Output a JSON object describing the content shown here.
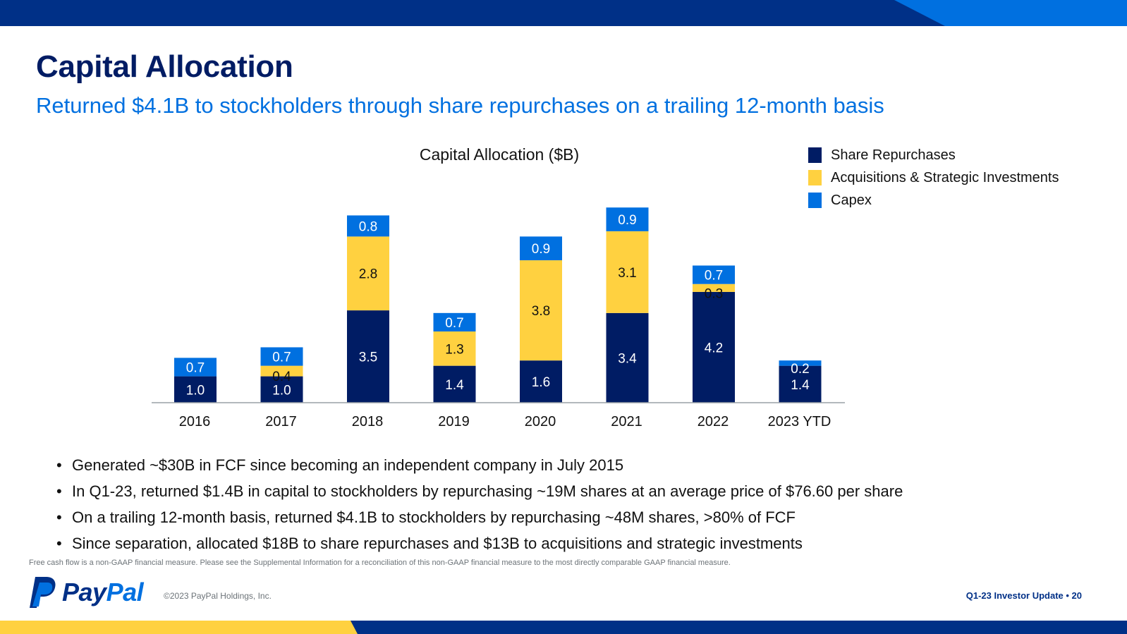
{
  "title": "Capital Allocation",
  "subtitle": "Returned $4.1B to stockholders through share repurchases on a trailing 12-month basis",
  "colors": {
    "navy": "#001c64",
    "dark_blue": "#003087",
    "bright_blue": "#0070e0",
    "light_blue": "#1a8cff",
    "yellow": "#ffd140",
    "axis": "#9aa0a6"
  },
  "chart_data": {
    "type": "bar",
    "stacked": true,
    "title": "Capital Allocation ($B)",
    "categories": [
      "2016",
      "2017",
      "2018",
      "2019",
      "2020",
      "2021",
      "2022",
      "2023 YTD"
    ],
    "series": [
      {
        "name": "Share Repurchases",
        "color": "#001c64",
        "values": [
          1.0,
          1.0,
          3.5,
          1.4,
          1.6,
          3.4,
          4.2,
          1.4
        ],
        "labels": [
          "1.0",
          "1.0",
          "3.5",
          "1.4",
          "1.6",
          "3.4",
          "4.2",
          "1.4"
        ]
      },
      {
        "name": "Acquisitions & Strategic Investments",
        "color": "#ffd140",
        "values": [
          0,
          0.4,
          2.8,
          1.3,
          3.8,
          3.1,
          0.3,
          0
        ],
        "labels": [
          "",
          "0.4",
          "2.8",
          "1.3",
          "3.8",
          "3.1",
          "0.3",
          ""
        ]
      },
      {
        "name": "Capex",
        "color": "#0070e0",
        "values": [
          0.7,
          0.7,
          0.8,
          0.7,
          0.9,
          0.9,
          0.7,
          0.2
        ],
        "labels": [
          "0.7",
          "0.7",
          "0.8",
          "0.7",
          "0.9",
          "0.9",
          "0.7",
          "0.2"
        ]
      }
    ],
    "xlabel": "",
    "ylabel": "",
    "ylim": [
      0,
      8
    ],
    "grid": false,
    "legend": "top-right"
  },
  "bullets": [
    "Generated ~$30B in FCF since becoming an independent company in July 2015",
    "In Q1-23, returned $1.4B in capital to stockholders by repurchasing ~19M shares at an average price of $76.60 per share",
    "On a trailing 12-month basis, returned $4.1B to stockholders by repurchasing ~48M shares, >80% of FCF",
    "Since separation, allocated $18B to share repurchases and $13B to acquisitions and strategic investments"
  ],
  "bullet_symbol": "•",
  "footnote": "Free cash flow is a non-GAAP financial measure. Please see the Supplemental Information for a reconciliation of this non-GAAP financial measure to the most directly comparable GAAP financial measure.",
  "logo": {
    "name": "PayPal"
  },
  "copyright": "©2023 PayPal Holdings, Inc.",
  "deck_label": "Q1-23 Investor Update  •  20"
}
